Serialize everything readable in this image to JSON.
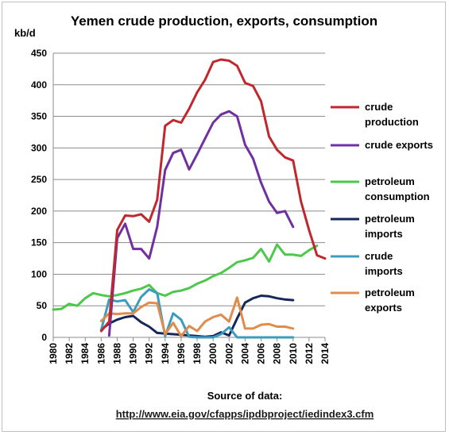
{
  "chart_data": {
    "type": "line",
    "title": "Yemen crude production, exports, consumption",
    "ylabel": "kb/d",
    "xlabel": "",
    "ylim": [
      0,
      450
    ],
    "yticks": [
      0,
      50,
      100,
      150,
      200,
      250,
      300,
      350,
      400,
      450
    ],
    "xlim": [
      1980,
      2014
    ],
    "xticks": [
      1980,
      1982,
      1984,
      1986,
      1988,
      1990,
      1992,
      1994,
      1996,
      1998,
      2000,
      2002,
      2004,
      2006,
      2008,
      2010,
      2012,
      2014
    ],
    "grid": true,
    "legend_position": "right",
    "series": [
      {
        "name": "crude production",
        "color": "#c0282d",
        "points": [
          [
            1986,
            10
          ],
          [
            1987,
            25
          ],
          [
            1988,
            170
          ],
          [
            1989,
            193
          ],
          [
            1990,
            192
          ],
          [
            1991,
            195
          ],
          [
            1992,
            183
          ],
          [
            1993,
            218
          ],
          [
            1994,
            335
          ],
          [
            1995,
            344
          ],
          [
            1996,
            340
          ],
          [
            1997,
            362
          ],
          [
            1998,
            388
          ],
          [
            1999,
            408
          ],
          [
            2000,
            436
          ],
          [
            2001,
            440
          ],
          [
            2002,
            438
          ],
          [
            2003,
            430
          ],
          [
            2004,
            403
          ],
          [
            2005,
            398
          ],
          [
            2006,
            374
          ],
          [
            2007,
            318
          ],
          [
            2008,
            297
          ],
          [
            2009,
            285
          ],
          [
            2010,
            280
          ],
          [
            2011,
            215
          ],
          [
            2012,
            170
          ],
          [
            2013,
            130
          ],
          [
            2014,
            125
          ]
        ]
      },
      {
        "name": "crude exports",
        "color": "#7030a0",
        "points": [
          [
            1987,
            3
          ],
          [
            1988,
            157
          ],
          [
            1989,
            180
          ],
          [
            1990,
            140
          ],
          [
            1991,
            140
          ],
          [
            1992,
            125
          ],
          [
            1993,
            175
          ],
          [
            1994,
            265
          ],
          [
            1995,
            292
          ],
          [
            1996,
            297
          ],
          [
            1997,
            266
          ],
          [
            1998,
            290
          ],
          [
            1999,
            315
          ],
          [
            2000,
            340
          ],
          [
            2001,
            353
          ],
          [
            2002,
            358
          ],
          [
            2003,
            350
          ],
          [
            2004,
            305
          ],
          [
            2005,
            283
          ],
          [
            2006,
            245
          ],
          [
            2007,
            215
          ],
          [
            2008,
            197
          ],
          [
            2009,
            200
          ],
          [
            2010,
            175
          ]
        ]
      },
      {
        "name": "petroleum consumption",
        "color": "#4cc84a",
        "points": [
          [
            1980,
            44
          ],
          [
            1981,
            45
          ],
          [
            1982,
            53
          ],
          [
            1983,
            50
          ],
          [
            1984,
            62
          ],
          [
            1985,
            70
          ],
          [
            1986,
            67
          ],
          [
            1987,
            65
          ],
          [
            1988,
            67
          ],
          [
            1989,
            70
          ],
          [
            1990,
            74
          ],
          [
            1991,
            77
          ],
          [
            1992,
            83
          ],
          [
            1993,
            70
          ],
          [
            1994,
            66
          ],
          [
            1995,
            72
          ],
          [
            1996,
            74
          ],
          [
            1997,
            78
          ],
          [
            1998,
            85
          ],
          [
            1999,
            90
          ],
          [
            2000,
            97
          ],
          [
            2001,
            102
          ],
          [
            2002,
            110
          ],
          [
            2003,
            119
          ],
          [
            2004,
            122
          ],
          [
            2005,
            126
          ],
          [
            2006,
            140
          ],
          [
            2007,
            120
          ],
          [
            2008,
            147
          ],
          [
            2009,
            131
          ],
          [
            2010,
            131
          ],
          [
            2011,
            129
          ],
          [
            2012,
            138
          ],
          [
            2013,
            145
          ]
        ]
      },
      {
        "name": "petroleum imports",
        "color": "#16275a",
        "points": [
          [
            1986,
            12
          ],
          [
            1987,
            22
          ],
          [
            1988,
            28
          ],
          [
            1989,
            32
          ],
          [
            1990,
            34
          ],
          [
            1991,
            24
          ],
          [
            1992,
            17
          ],
          [
            1993,
            7
          ],
          [
            1994,
            6
          ],
          [
            1995,
            5
          ],
          [
            1996,
            4
          ],
          [
            1997,
            3
          ],
          [
            1998,
            2
          ],
          [
            1999,
            1
          ],
          [
            2000,
            2
          ],
          [
            2001,
            8
          ],
          [
            2002,
            3
          ],
          [
            2003,
            30
          ],
          [
            2004,
            55
          ],
          [
            2005,
            62
          ],
          [
            2006,
            66
          ],
          [
            2007,
            65
          ],
          [
            2008,
            62
          ],
          [
            2009,
            60
          ],
          [
            2010,
            59
          ]
        ]
      },
      {
        "name": "crude imports",
        "color": "#3c9cc0",
        "points": [
          [
            1986,
            12
          ],
          [
            1987,
            60
          ],
          [
            1988,
            57
          ],
          [
            1989,
            59
          ],
          [
            1990,
            40
          ],
          [
            1991,
            64
          ],
          [
            1992,
            76
          ],
          [
            1993,
            70
          ],
          [
            1994,
            2
          ],
          [
            1995,
            38
          ],
          [
            1996,
            28
          ],
          [
            1997,
            1
          ],
          [
            1998,
            0
          ],
          [
            1999,
            0
          ],
          [
            2000,
            0
          ],
          [
            2001,
            5
          ],
          [
            2002,
            16
          ],
          [
            2003,
            0
          ],
          [
            2004,
            0
          ],
          [
            2005,
            0
          ],
          [
            2006,
            0
          ],
          [
            2007,
            0
          ],
          [
            2008,
            0
          ],
          [
            2009,
            0
          ],
          [
            2010,
            0
          ]
        ]
      },
      {
        "name": "petroleum exports",
        "color": "#e08c4c",
        "points": [
          [
            1986,
            26
          ],
          [
            1987,
            38
          ],
          [
            1988,
            37
          ],
          [
            1989,
            38
          ],
          [
            1990,
            38
          ],
          [
            1991,
            48
          ],
          [
            1992,
            55
          ],
          [
            1993,
            54
          ],
          [
            1994,
            5
          ],
          [
            1995,
            23
          ],
          [
            1996,
            2
          ],
          [
            1997,
            18
          ],
          [
            1998,
            10
          ],
          [
            1999,
            25
          ],
          [
            2000,
            32
          ],
          [
            2001,
            36
          ],
          [
            2002,
            25
          ],
          [
            2003,
            63
          ],
          [
            2004,
            14
          ],
          [
            2005,
            14
          ],
          [
            2006,
            20
          ],
          [
            2007,
            21
          ],
          [
            2008,
            17
          ],
          [
            2009,
            17
          ],
          [
            2010,
            14
          ]
        ]
      }
    ]
  },
  "source": {
    "label": "Source of data:",
    "url": "http://www.eia.gov/cfapps/ipdbproject/iedindex3.cfm"
  }
}
